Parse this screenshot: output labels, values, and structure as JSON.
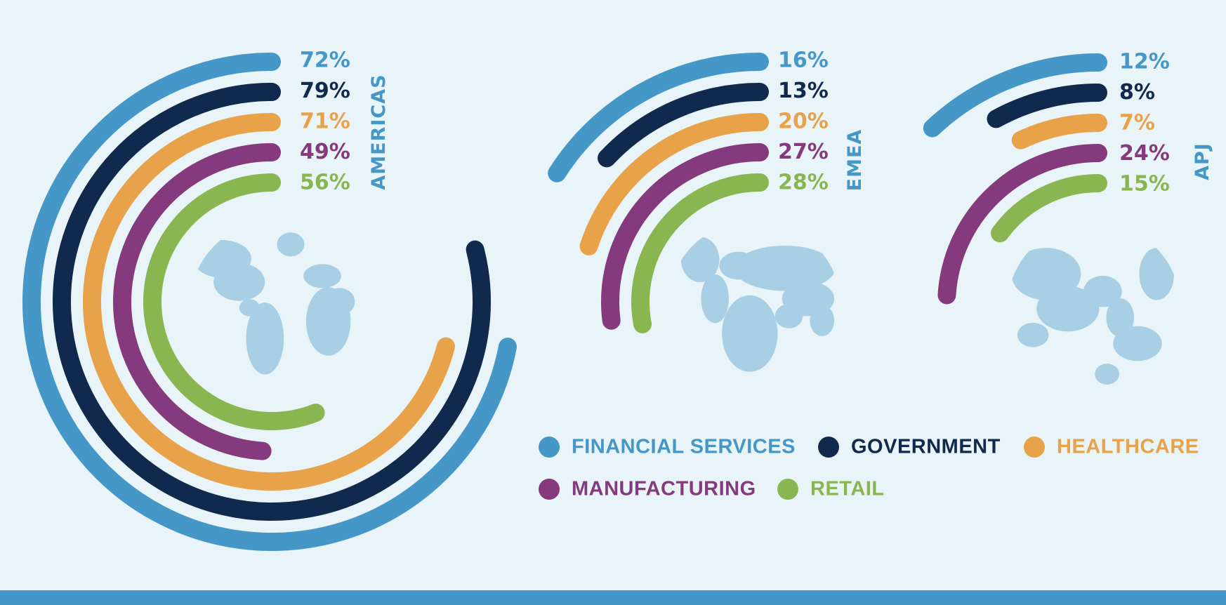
{
  "colors": {
    "background": "#e8f4f7",
    "map": "#a9cfe5",
    "bottom_bar": "#4597c7"
  },
  "chart_data": {
    "type": "radial bar",
    "series": [
      {
        "name": "FINANCIAL SERVICES",
        "color": "#4597c7"
      },
      {
        "name": "GOVERNMENT",
        "color": "#10294d"
      },
      {
        "name": "HEALTHCARE",
        "color": "#e8a24a"
      },
      {
        "name": "MANUFACTURING",
        "color": "#853a7d"
      },
      {
        "name": "RETAIL",
        "color": "#8ab652"
      }
    ],
    "regions": [
      {
        "name": "AMERICAS",
        "values": [
          72,
          79,
          71,
          49,
          56
        ],
        "labels": [
          "72%",
          "79%",
          "71%",
          "49%",
          "56%"
        ]
      },
      {
        "name": "EMEA",
        "values": [
          16,
          13,
          20,
          27,
          28
        ],
        "labels": [
          "16%",
          "13%",
          "20%",
          "27%",
          "28%"
        ]
      },
      {
        "name": "APJ",
        "values": [
          12,
          8,
          7,
          24,
          15
        ],
        "labels": [
          "12%",
          "8%",
          "7%",
          "24%",
          "15%"
        ]
      }
    ],
    "legend": [
      "FINANCIAL SERVICES",
      "GOVERNMENT",
      "HEALTHCARE",
      "MANUFACTURING",
      "RETAIL"
    ],
    "legend_position": "bottom-right"
  }
}
